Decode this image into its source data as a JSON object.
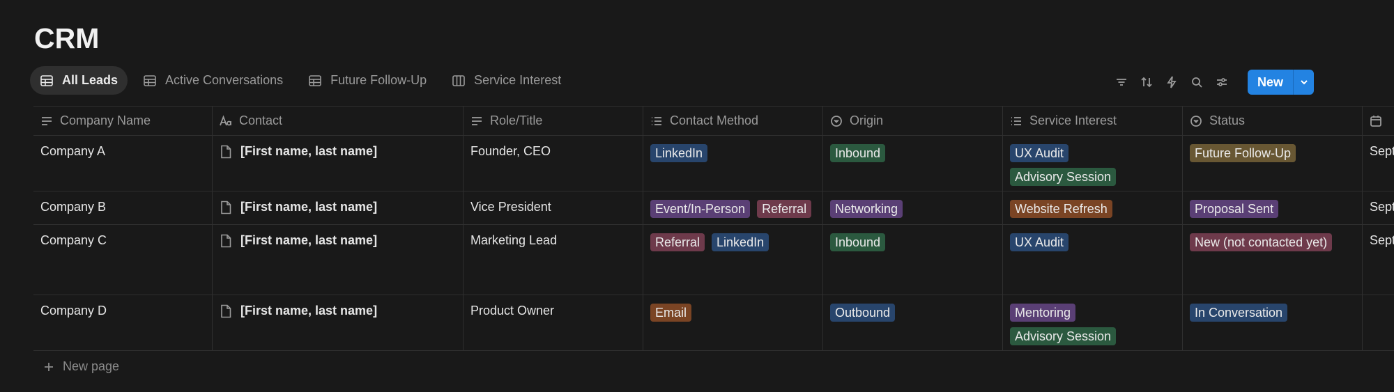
{
  "page": {
    "title": "CRM"
  },
  "views": [
    {
      "label": "All Leads",
      "icon": "table-icon",
      "active": true
    },
    {
      "label": "Active Conversations",
      "icon": "table-icon",
      "active": false
    },
    {
      "label": "Future Follow-Up",
      "icon": "table-icon",
      "active": false
    },
    {
      "label": "Service Interest",
      "icon": "board-icon",
      "active": false
    }
  ],
  "toolbar": {
    "new_label": "New"
  },
  "columns": [
    {
      "label": "Company Name",
      "icon": "text-lines-icon"
    },
    {
      "label": "Contact",
      "icon": "title-aa-icon"
    },
    {
      "label": "Role/Title",
      "icon": "text-lines-icon"
    },
    {
      "label": "Contact Method",
      "icon": "multi-select-icon"
    },
    {
      "label": "Origin",
      "icon": "select-icon"
    },
    {
      "label": "Service Interest",
      "icon": "multi-select-icon"
    },
    {
      "label": "Status",
      "icon": "status-icon"
    },
    {
      "label": "",
      "icon": "calendar-icon"
    }
  ],
  "rows": [
    {
      "company": "Company A",
      "contact": "[First name, last name]",
      "role": "Founder, CEO",
      "contact_method": [
        {
          "label": "LinkedIn",
          "color": "#28456c"
        }
      ],
      "origin": [
        {
          "label": "Inbound",
          "color": "#2b593f"
        }
      ],
      "service_interest": [
        {
          "label": "UX Audit",
          "color": "#28456c"
        },
        {
          "label": "Advisory Session",
          "color": "#2b593f"
        }
      ],
      "status": [
        {
          "label": "Future Follow-Up",
          "color": "#685733"
        }
      ],
      "date": "Sept"
    },
    {
      "company": "Company B",
      "contact": "[First name, last name]",
      "role": "Vice President",
      "contact_method": [
        {
          "label": "Event/In-Person",
          "color": "#5a3f75"
        },
        {
          "label": "Referral",
          "color": "#6e3a4b"
        }
      ],
      "origin": [
        {
          "label": "Networking",
          "color": "#5a3f75"
        }
      ],
      "service_interest": [
        {
          "label": "Website Refresh",
          "color": "#7a4424"
        }
      ],
      "status": [
        {
          "label": "Proposal Sent",
          "color": "#5a3f75"
        }
      ],
      "date": "Sept"
    },
    {
      "company": "Company C",
      "contact": "[First name, last name]",
      "role": "Marketing Lead",
      "contact_method": [
        {
          "label": "Referral",
          "color": "#6e3a4b"
        },
        {
          "label": "LinkedIn",
          "color": "#28456c"
        }
      ],
      "origin": [
        {
          "label": "Inbound",
          "color": "#2b593f"
        }
      ],
      "service_interest": [
        {
          "label": "UX Audit",
          "color": "#28456c"
        }
      ],
      "status": [
        {
          "label": "New (not contacted yet)",
          "color": "#6e3a4b"
        }
      ],
      "date": "Sept"
    },
    {
      "company": "Company D",
      "contact": "[First name, last name]",
      "role": "Product Owner",
      "contact_method": [
        {
          "label": "Email",
          "color": "#7a4424"
        }
      ],
      "origin": [
        {
          "label": "Outbound",
          "color": "#28456c"
        }
      ],
      "service_interest": [
        {
          "label": "Mentoring",
          "color": "#5a3f75"
        },
        {
          "label": "Advisory Session",
          "color": "#2b593f"
        }
      ],
      "status": [
        {
          "label": "In Conversation",
          "color": "#28456c"
        }
      ],
      "date": ""
    }
  ],
  "footer": {
    "new_page_label": "New page"
  }
}
